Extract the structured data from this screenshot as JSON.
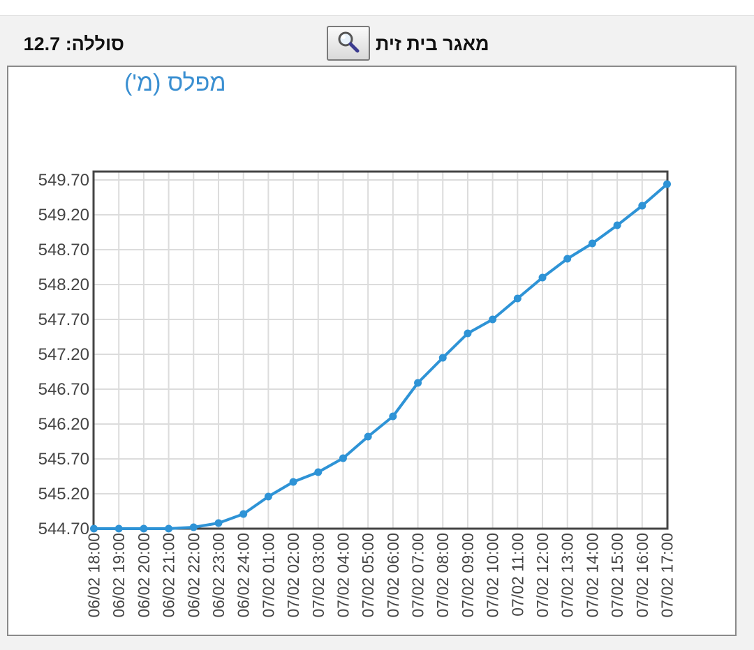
{
  "header": {
    "reservoir_name": "מאגר בית זית",
    "salinity": "סוללה: 12.7",
    "search_icon": "magnifier-icon"
  },
  "colors": {
    "line": "#2e93d6",
    "title": "#3a8fd1",
    "grid": "#dcdcdc",
    "axis": "#444444"
  },
  "chart_data": {
    "type": "line",
    "title": "מפלס (מ')",
    "xlabel": "",
    "ylabel": "",
    "categories": [
      "06/02 18:00",
      "06/02 19:00",
      "06/02 20:00",
      "06/02 21:00",
      "06/02 22:00",
      "06/02 23:00",
      "06/02 24:00",
      "07/02 01:00",
      "07/02 02:00",
      "07/02 03:00",
      "07/02 04:00",
      "07/02 05:00",
      "07/02 06:00",
      "07/02 07:00",
      "07/02 08:00",
      "07/02 09:00",
      "07/02 10:00",
      "07/02 11:00",
      "07/02 12:00",
      "07/02 13:00",
      "07/02 14:00",
      "07/02 15:00",
      "07/02 16:00",
      "07/02 17:00"
    ],
    "series": [
      {
        "values": [
          544.7,
          544.7,
          544.7,
          544.7,
          544.72,
          544.78,
          544.91,
          545.16,
          545.37,
          545.51,
          545.71,
          546.02,
          546.31,
          546.79,
          547.15,
          547.5,
          547.7,
          548.0,
          548.3,
          548.57,
          548.79,
          549.05,
          549.33,
          549.64
        ]
      }
    ],
    "y_ticks": [
      "544.70",
      "545.20",
      "545.70",
      "546.20",
      "546.70",
      "547.20",
      "547.70",
      "548.20",
      "548.70",
      "549.20",
      "549.70"
    ],
    "ylim": [
      544.7,
      549.7
    ],
    "grid": true,
    "legend": "none"
  }
}
